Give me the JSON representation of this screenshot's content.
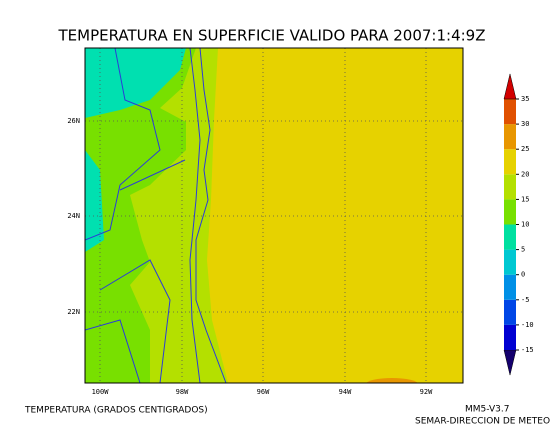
{
  "title": "TEMPERATURA EN SUPERFICIE VALIDO PARA 2007:1:4:9Z",
  "map": {
    "lon_labels": [
      "100W",
      "98W",
      "96W",
      "94W",
      "92W"
    ],
    "lat_labels": [
      "26N",
      "24N",
      "22N"
    ]
  },
  "colorbar": {
    "levels": [
      -15,
      -10,
      -5,
      0,
      5,
      10,
      15,
      20,
      25,
      30,
      35
    ],
    "colors": [
      "#14006e",
      "#0000d2",
      "#0046e6",
      "#0090e6",
      "#00c8d2",
      "#00e0a0",
      "#78e000",
      "#b4e000",
      "#e6d200",
      "#e89600",
      "#e05000",
      "#d20000"
    ]
  },
  "footer": {
    "variable": "TEMPERATURA (GRADOS CENTIGRADOS)",
    "model": "MM5-V3.7",
    "agency": "SEMAR-DIRECCION DE METEO"
  }
}
